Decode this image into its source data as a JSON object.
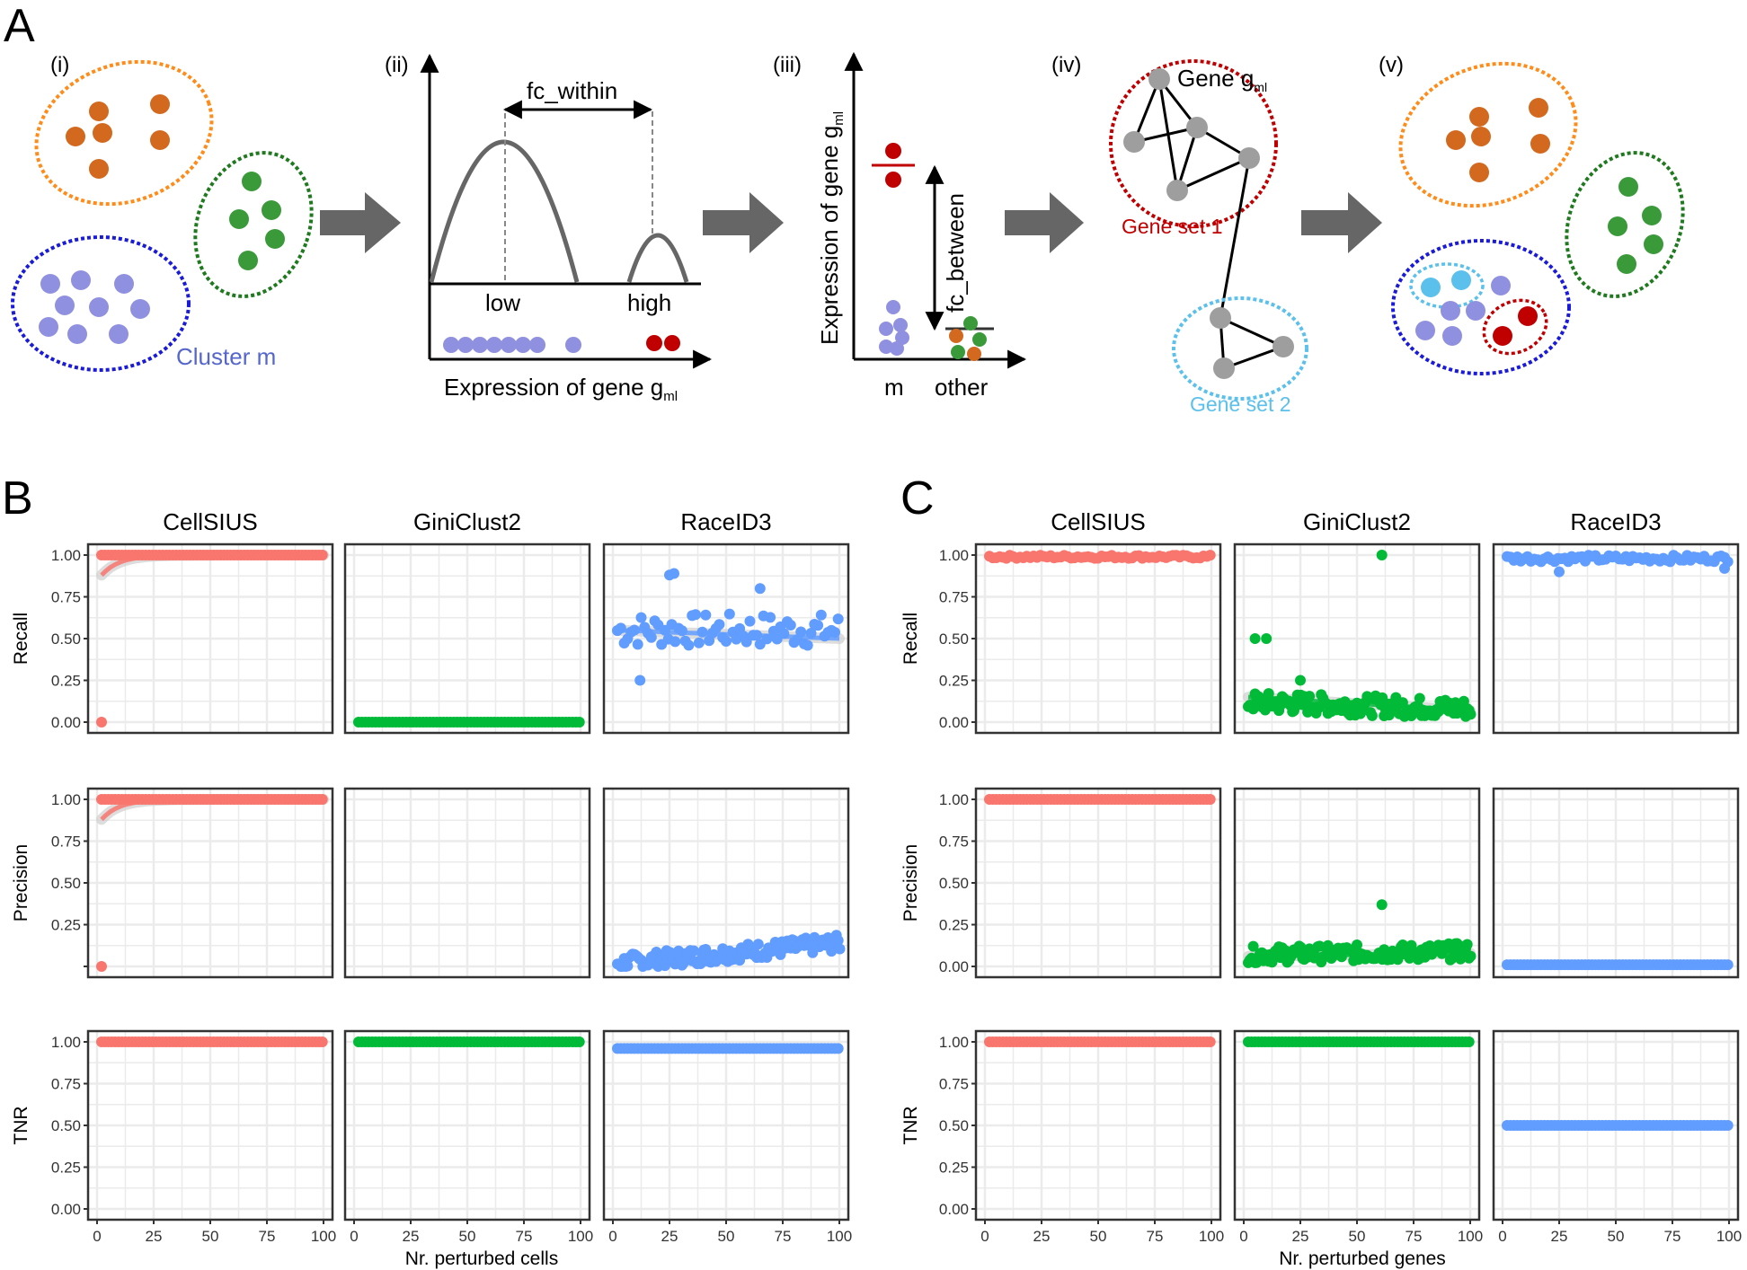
{
  "panel_labels": {
    "a": "A",
    "b": "B",
    "c": "C"
  },
  "schematic": {
    "step_labels": [
      "(i)",
      "(ii)",
      "(iii)",
      "(iv)",
      "(v)"
    ],
    "cluster_label": "Cluster m",
    "fc_within": "fc_within",
    "low": "low",
    "high": "high",
    "expr_x_label": "Expression of gene g",
    "expr_sub": "ml",
    "fc_between": "fc_between",
    "m_label": "m",
    "other_label": "other",
    "gene_label": "Gene g",
    "gene_set_1": "Gene set 1",
    "gene_set_2": "Gene set 2",
    "colors": {
      "orange": "#ff8c1a",
      "green": "#1f7a1f",
      "blue": "#1a1ad9",
      "lightblue": "#5bc0eb",
      "red": "#c00000",
      "lavender": "#9090e0",
      "brown": "#d2691e",
      "leafgreen": "#3a9a3a",
      "grey": "#9e9e9e",
      "arrow": "#666666"
    }
  },
  "chart_data": [
    {
      "type": "scatter",
      "panel": "B",
      "facets": [
        "CellSIUS",
        "GiniClust2",
        "RaceID3"
      ],
      "rows": [
        "Recall",
        "Precision",
        "TNR"
      ],
      "xlabel": "Nr. perturbed cells",
      "xlim": [
        0,
        100
      ],
      "xticks": [
        "0",
        "25",
        "50",
        "75",
        "100"
      ],
      "yticks": {
        "Recall": [
          "0.00",
          "0.25",
          "0.50",
          "0.75",
          "1.00"
        ],
        "Precision": [
          "",
          "0.25",
          "0.50",
          "0.75",
          "1.00"
        ],
        "TNR": [
          "0.00",
          "0.25",
          "0.50",
          "0.75",
          "1.00"
        ]
      },
      "ylim": [
        0,
        1
      ],
      "colors": {
        "CellSIUS": "#f8766d",
        "GiniClust2": "#00ba38",
        "RaceID3": "#619cff"
      },
      "series": [
        {
          "row": "Recall",
          "facet": "CellSIUS",
          "x": [
            2,
            100
          ],
          "pattern": "const",
          "level": 1.0,
          "outliers": [
            [
              2,
              0.0
            ]
          ],
          "smooth": "rise",
          "smooth_start": 0.88
        },
        {
          "row": "Recall",
          "facet": "GiniClust2",
          "x": [
            2,
            100
          ],
          "pattern": "const",
          "level": 0.0
        },
        {
          "row": "Recall",
          "facet": "RaceID3",
          "x": [
            2,
            100
          ],
          "pattern": "noise",
          "level": 0.55,
          "spread": 0.1,
          "outliers": [
            [
              25,
              0.88
            ],
            [
              27,
              0.89
            ],
            [
              12,
              0.25
            ],
            [
              65,
              0.8
            ]
          ],
          "smooth": "flat",
          "smooth_start": 0.55,
          "smooth_end": 0.5
        },
        {
          "row": "Precision",
          "facet": "CellSIUS",
          "x": [
            2,
            100
          ],
          "pattern": "const",
          "level": 1.0,
          "outliers": [
            [
              2,
              0.0
            ]
          ],
          "smooth": "rise",
          "smooth_start": 0.88
        },
        {
          "row": "Precision",
          "facet": "RaceID3",
          "x": [
            2,
            100
          ],
          "pattern": "band",
          "level": 0.02,
          "level_end": 0.14,
          "spread": 0.1
        },
        {
          "row": "TNR",
          "facet": "CellSIUS",
          "x": [
            2,
            100
          ],
          "pattern": "const",
          "level": 1.0
        },
        {
          "row": "TNR",
          "facet": "GiniClust2",
          "x": [
            2,
            100
          ],
          "pattern": "const",
          "level": 1.0
        },
        {
          "row": "TNR",
          "facet": "RaceID3",
          "x": [
            2,
            100
          ],
          "pattern": "const",
          "level": 0.96
        }
      ]
    },
    {
      "type": "scatter",
      "panel": "C",
      "facets": [
        "CellSIUS",
        "GiniClust2",
        "RaceID3"
      ],
      "rows": [
        "Recall",
        "Precision",
        "TNR"
      ],
      "xlabel": "Nr. perturbed genes",
      "xlim": [
        0,
        100
      ],
      "xticks": [
        "0",
        "25",
        "50",
        "75",
        "100"
      ],
      "yticks": {
        "Recall": [
          "0.00",
          "0.25",
          "0.50",
          "0.75",
          "1.00"
        ],
        "Precision": [
          "0.00",
          "0.25",
          "0.50",
          "0.75",
          "1.00"
        ],
        "TNR": [
          "0.00",
          "0.25",
          "0.50",
          "0.75",
          "1.00"
        ]
      },
      "ylim": [
        0,
        1
      ],
      "colors": {
        "CellSIUS": "#f8766d",
        "GiniClust2": "#00ba38",
        "RaceID3": "#619cff"
      },
      "series": [
        {
          "row": "Recall",
          "facet": "CellSIUS",
          "x": [
            2,
            100
          ],
          "pattern": "near",
          "level": 0.99,
          "spread": 0.02
        },
        {
          "row": "Recall",
          "facet": "GiniClust2",
          "x": [
            2,
            100
          ],
          "pattern": "band",
          "level": 0.12,
          "level_end": 0.08,
          "spread": 0.12,
          "outliers": [
            [
              5,
              0.5
            ],
            [
              10,
              0.5
            ],
            [
              61,
              1.0
            ],
            [
              25,
              0.25
            ]
          ],
          "smooth": "flat",
          "smooth_start": 0.15,
          "smooth_end": 0.07
        },
        {
          "row": "Recall",
          "facet": "RaceID3",
          "x": [
            2,
            100
          ],
          "pattern": "near",
          "level": 0.98,
          "spread": 0.04,
          "outliers": [
            [
              25,
              0.9
            ],
            [
              98,
              0.92
            ]
          ]
        },
        {
          "row": "Precision",
          "facet": "CellSIUS",
          "x": [
            2,
            100
          ],
          "pattern": "const",
          "level": 1.0
        },
        {
          "row": "Precision",
          "facet": "GiniClust2",
          "x": [
            2,
            100
          ],
          "pattern": "band",
          "level": 0.07,
          "level_end": 0.09,
          "spread": 0.1,
          "outliers": [
            [
              61,
              0.37
            ]
          ],
          "smooth": "flat",
          "smooth_start": 0.06,
          "smooth_end": 0.08
        },
        {
          "row": "Precision",
          "facet": "RaceID3",
          "x": [
            2,
            100
          ],
          "pattern": "const",
          "level": 0.01
        },
        {
          "row": "TNR",
          "facet": "CellSIUS",
          "x": [
            2,
            100
          ],
          "pattern": "const",
          "level": 1.0
        },
        {
          "row": "TNR",
          "facet": "GiniClust2",
          "x": [
            2,
            100
          ],
          "pattern": "const",
          "level": 1.0
        },
        {
          "row": "TNR",
          "facet": "RaceID3",
          "x": [
            2,
            100
          ],
          "pattern": "const",
          "level": 0.5
        }
      ]
    }
  ]
}
